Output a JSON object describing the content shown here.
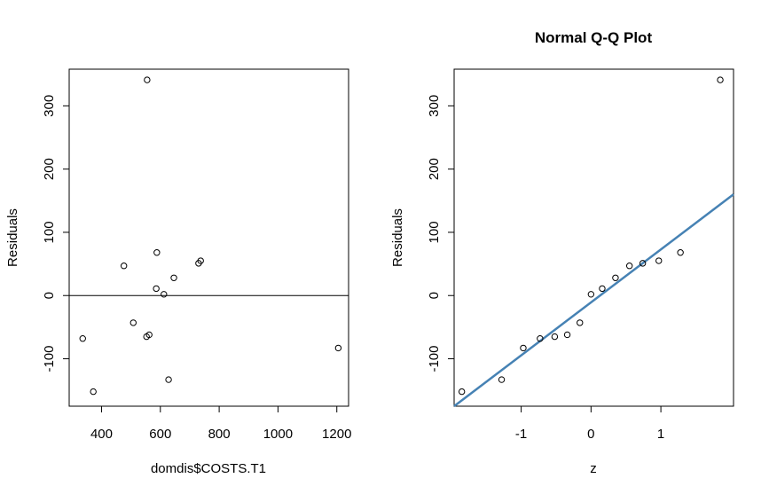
{
  "chart_data": [
    {
      "type": "scatter",
      "title": "",
      "xlabel": "domdis$COSTS.T1",
      "ylabel": "Residuals",
      "xlim": [
        290,
        1240
      ],
      "ylim": [
        -175,
        358
      ],
      "xticks": [
        400,
        600,
        800,
        1000,
        1200
      ],
      "yticks": [
        -100,
        0,
        100,
        200,
        300
      ],
      "hline": 0,
      "points": [
        {
          "x": 555,
          "y": 341
        },
        {
          "x": 336,
          "y": -68
        },
        {
          "x": 372,
          "y": -152
        },
        {
          "x": 476,
          "y": 47
        },
        {
          "x": 508,
          "y": -43
        },
        {
          "x": 553,
          "y": -65
        },
        {
          "x": 562,
          "y": -62
        },
        {
          "x": 586,
          "y": 11
        },
        {
          "x": 588,
          "y": 68
        },
        {
          "x": 612,
          "y": 2
        },
        {
          "x": 628,
          "y": -133
        },
        {
          "x": 646,
          "y": 28
        },
        {
          "x": 730,
          "y": 51
        },
        {
          "x": 737,
          "y": 55
        },
        {
          "x": 1205,
          "y": -83
        }
      ]
    },
    {
      "type": "scatter",
      "title": "Normal Q-Q Plot",
      "xlabel": "z",
      "ylabel": "Residuals",
      "xlim": [
        -1.96,
        2.04
      ],
      "ylim": [
        -175,
        358
      ],
      "xticks": [
        -1,
        0,
        1
      ],
      "yticks": [
        -100,
        0,
        100,
        200,
        300
      ],
      "line_color": "#4682b4",
      "reference_line": [
        {
          "x": -1.96,
          "y": -175
        },
        {
          "x": 2.04,
          "y": 160
        }
      ],
      "points": [
        {
          "x": -1.85,
          "y": -152
        },
        {
          "x": -1.28,
          "y": -133
        },
        {
          "x": -0.97,
          "y": -83
        },
        {
          "x": -0.73,
          "y": -68
        },
        {
          "x": -0.52,
          "y": -65
        },
        {
          "x": -0.34,
          "y": -62
        },
        {
          "x": -0.16,
          "y": -43
        },
        {
          "x": 0.0,
          "y": 2
        },
        {
          "x": 0.16,
          "y": 11
        },
        {
          "x": 0.35,
          "y": 28
        },
        {
          "x": 0.55,
          "y": 47
        },
        {
          "x": 0.74,
          "y": 51
        },
        {
          "x": 0.97,
          "y": 55
        },
        {
          "x": 1.28,
          "y": 68
        },
        {
          "x": 1.85,
          "y": 341
        }
      ]
    }
  ]
}
